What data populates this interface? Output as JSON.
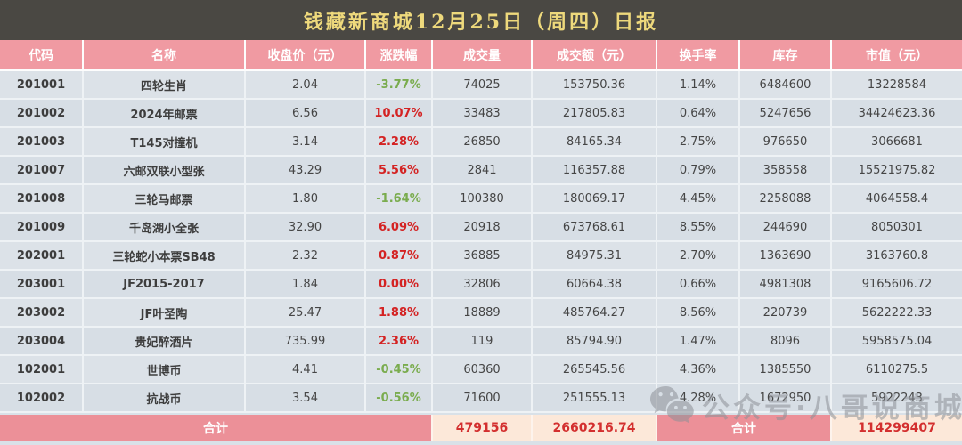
{
  "title": "钱藏新商城12月25日（周四）日报",
  "chart_data": {
    "type": "table",
    "title": "钱藏新商城12月25日（周四）日报",
    "columns": [
      "代码",
      "名称",
      "收盘价（元）",
      "涨跌幅",
      "成交量",
      "成交额（元）",
      "换手率",
      "库存",
      "市值（元）"
    ],
    "rows": [
      {
        "code": "201001",
        "name": "四轮生肖",
        "close": "2.04",
        "change": "-3.77%",
        "dir": "down",
        "volume": "74025",
        "turnover": "153750.36",
        "rate": "1.14%",
        "stock": "6484600",
        "cap": "13228584"
      },
      {
        "code": "201002",
        "name": "2024年邮票",
        "close": "6.56",
        "change": "10.07%",
        "dir": "up",
        "volume": "33483",
        "turnover": "217805.83",
        "rate": "0.64%",
        "stock": "5247656",
        "cap": "34424623.36"
      },
      {
        "code": "201003",
        "name": "T145对撞机",
        "close": "3.14",
        "change": "2.28%",
        "dir": "up",
        "volume": "26850",
        "turnover": "84165.34",
        "rate": "2.75%",
        "stock": "976650",
        "cap": "3066681"
      },
      {
        "code": "201007",
        "name": "六邮双联小型张",
        "close": "43.29",
        "change": "5.56%",
        "dir": "up",
        "volume": "2841",
        "turnover": "116357.88",
        "rate": "0.79%",
        "stock": "358558",
        "cap": "15521975.82"
      },
      {
        "code": "201008",
        "name": "三轮马邮票",
        "close": "1.80",
        "change": "-1.64%",
        "dir": "down",
        "volume": "100380",
        "turnover": "180069.17",
        "rate": "4.45%",
        "stock": "2258088",
        "cap": "4064558.4"
      },
      {
        "code": "201009",
        "name": "千岛湖小全张",
        "close": "32.90",
        "change": "6.09%",
        "dir": "up",
        "volume": "20918",
        "turnover": "673768.61",
        "rate": "8.55%",
        "stock": "244690",
        "cap": "8050301"
      },
      {
        "code": "202001",
        "name": "三轮蛇小本票SB48",
        "close": "2.32",
        "change": "0.87%",
        "dir": "up",
        "volume": "36885",
        "turnover": "84975.31",
        "rate": "2.70%",
        "stock": "1363690",
        "cap": "3163760.8"
      },
      {
        "code": "203001",
        "name": "JF2015-2017",
        "close": "1.84",
        "change": "0.00%",
        "dir": "up",
        "volume": "32806",
        "turnover": "60664.38",
        "rate": "0.66%",
        "stock": "4981308",
        "cap": "9165606.72"
      },
      {
        "code": "203002",
        "name": "JF叶圣陶",
        "close": "25.47",
        "change": "1.88%",
        "dir": "up",
        "volume": "18889",
        "turnover": "485764.27",
        "rate": "8.56%",
        "stock": "220739",
        "cap": "5622222.33"
      },
      {
        "code": "203004",
        "name": "贵妃醉酒片",
        "close": "735.99",
        "change": "2.36%",
        "dir": "up",
        "volume": "119",
        "turnover": "85794.90",
        "rate": "1.47%",
        "stock": "8096",
        "cap": "5958575.04"
      },
      {
        "code": "102001",
        "name": "世博币",
        "close": "4.41",
        "change": "-0.45%",
        "dir": "down",
        "volume": "60360",
        "turnover": "265545.56",
        "rate": "4.36%",
        "stock": "1385550",
        "cap": "6110275.5"
      },
      {
        "code": "102002",
        "name": "抗战币",
        "close": "3.54",
        "change": "-0.56%",
        "dir": "down",
        "volume": "71600",
        "turnover": "251555.13",
        "rate": "4.28%",
        "stock": "1672950",
        "cap": "5922243"
      }
    ],
    "totals": {
      "label_left": "合计",
      "volume": "479156",
      "turnover": "2660216.74",
      "label_right": "合计",
      "cap": "114299407"
    }
  },
  "watermark": {
    "icon": "wechat-icon",
    "text": "公众号·八哥说商城"
  },
  "colors": {
    "title_bar_bg": "#4a4843",
    "title_text": "#eed97c",
    "header_bg": "#f09aa2",
    "row_bg_even": "#dce2e8",
    "row_bg_odd": "#d7dee5",
    "change_up_red": "#d42323",
    "change_down_green": "#7aac4e",
    "footer_label_bg": "#ec9098",
    "footer_value_bg": "#fce8d9",
    "footer_value_text": "#d32f2f"
  }
}
